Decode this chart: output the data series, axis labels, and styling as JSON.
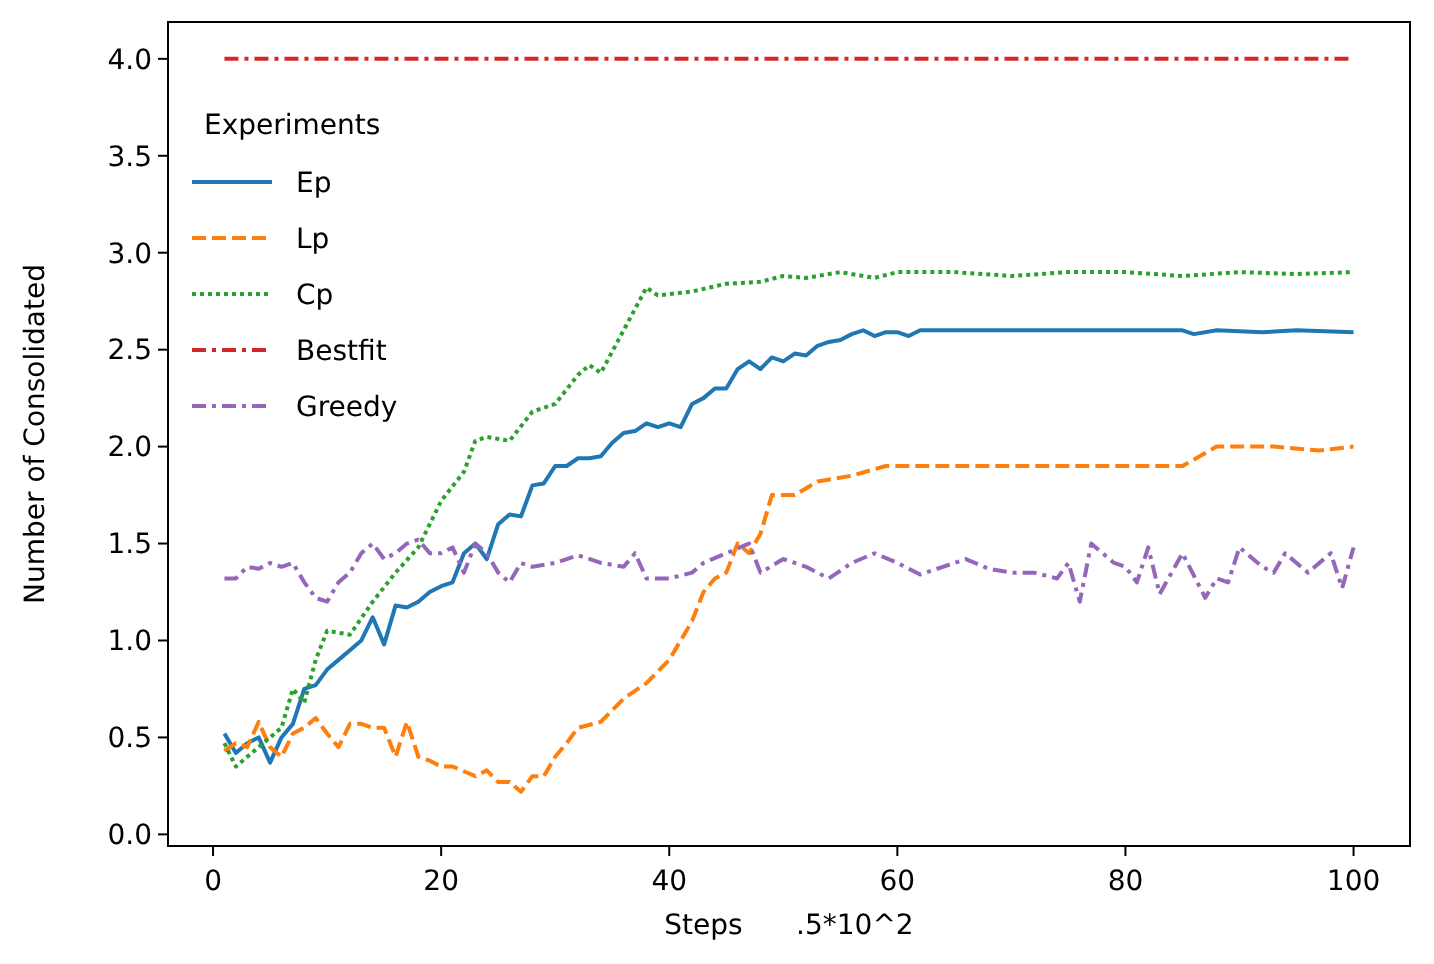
{
  "chart_data": {
    "type": "line",
    "xlabel": "Steps      .5*10^2",
    "ylabel": "Number of Consolidated",
    "legend_title": "Experiments",
    "legend": "top left",
    "grid": false,
    "xlim": [
      -3.95,
      104.95
    ],
    "ylim": [
      -0.06,
      4.19
    ],
    "xticks": [
      0,
      20,
      40,
      60,
      80,
      100
    ],
    "yticks": [
      {
        "value": 0,
        "label": "0.0"
      },
      {
        "value": 0.5,
        "label": "0.5"
      },
      {
        "value": 1,
        "label": "1.0"
      },
      {
        "value": 1.5,
        "label": "1.5"
      },
      {
        "value": 2,
        "label": "2.0"
      },
      {
        "value": 2.5,
        "label": "2.5"
      },
      {
        "value": 3,
        "label": "3.0"
      },
      {
        "value": 3.5,
        "label": "3.5"
      },
      {
        "value": 4,
        "label": "4.0"
      }
    ],
    "series": [
      {
        "name": "Ep",
        "color": "#1f77b4",
        "line_style": "solid",
        "x": [
          1,
          2,
          3,
          4,
          5,
          6,
          7,
          8,
          9,
          10,
          11,
          12,
          13,
          14,
          15,
          16,
          17,
          18,
          19,
          20,
          21,
          22,
          23,
          24,
          25,
          26,
          27,
          28,
          29,
          30,
          31,
          32,
          33,
          34,
          35,
          36,
          37,
          38,
          39,
          40,
          41,
          42,
          43,
          44,
          45,
          46,
          47,
          48,
          49,
          50,
          51,
          52,
          53,
          54,
          55,
          56,
          57,
          58,
          59,
          60,
          61,
          62,
          65,
          70,
          75,
          80,
          85,
          86,
          88,
          92,
          95,
          100
        ],
        "values": [
          0.52,
          0.42,
          0.47,
          0.5,
          0.37,
          0.5,
          0.57,
          0.75,
          0.77,
          0.85,
          0.9,
          0.95,
          1.0,
          1.12,
          0.98,
          1.18,
          1.17,
          1.2,
          1.25,
          1.28,
          1.3,
          1.45,
          1.5,
          1.42,
          1.6,
          1.65,
          1.64,
          1.8,
          1.81,
          1.9,
          1.9,
          1.94,
          1.94,
          1.95,
          2.02,
          2.07,
          2.08,
          2.12,
          2.1,
          2.12,
          2.1,
          2.22,
          2.25,
          2.3,
          2.3,
          2.4,
          2.44,
          2.4,
          2.46,
          2.44,
          2.48,
          2.47,
          2.52,
          2.54,
          2.55,
          2.58,
          2.6,
          2.57,
          2.59,
          2.59,
          2.57,
          2.6,
          2.6,
          2.6,
          2.6,
          2.6,
          2.6,
          2.58,
          2.6,
          2.59,
          2.6,
          2.59
        ]
      },
      {
        "name": "Lp",
        "color": "#ff7f0e",
        "line_style": "dashed",
        "x": [
          1,
          2,
          3,
          4,
          5,
          6,
          7,
          8,
          9,
          10,
          11,
          12,
          13,
          14,
          15,
          16,
          17,
          18,
          19,
          20,
          21,
          23,
          24,
          25,
          26,
          27,
          28,
          29,
          30,
          31,
          32,
          34,
          36,
          38,
          40,
          42,
          43,
          44,
          45,
          46,
          47,
          48,
          49,
          51,
          53,
          56,
          59,
          62,
          65,
          70,
          75,
          80,
          85,
          88,
          90,
          93,
          97,
          100
        ],
        "values": [
          0.43,
          0.47,
          0.45,
          0.58,
          0.45,
          0.4,
          0.52,
          0.55,
          0.6,
          0.52,
          0.45,
          0.57,
          0.57,
          0.55,
          0.55,
          0.4,
          0.58,
          0.4,
          0.38,
          0.35,
          0.35,
          0.3,
          0.33,
          0.27,
          0.27,
          0.22,
          0.3,
          0.3,
          0.4,
          0.47,
          0.55,
          0.58,
          0.7,
          0.78,
          0.9,
          1.1,
          1.25,
          1.32,
          1.35,
          1.5,
          1.45,
          1.55,
          1.75,
          1.75,
          1.82,
          1.85,
          1.9,
          1.9,
          1.9,
          1.9,
          1.9,
          1.9,
          1.9,
          2.0,
          2.0,
          2.0,
          1.98,
          2.0
        ]
      },
      {
        "name": "Cp",
        "color": "#2ca02c",
        "line_style": "dotted",
        "x": [
          1,
          2,
          4,
          6,
          7,
          8,
          9,
          10,
          12,
          14,
          16,
          18,
          20,
          22,
          23,
          24,
          26,
          28,
          30,
          32,
          33,
          34,
          36,
          38,
          39,
          42,
          45,
          48,
          50,
          52,
          55,
          58,
          60,
          65,
          70,
          75,
          80,
          85,
          90,
          95,
          100
        ],
        "values": [
          0.47,
          0.35,
          0.45,
          0.55,
          0.75,
          0.68,
          0.9,
          1.05,
          1.03,
          1.2,
          1.35,
          1.48,
          1.72,
          1.87,
          2.03,
          2.05,
          2.03,
          2.18,
          2.22,
          2.37,
          2.42,
          2.38,
          2.6,
          2.82,
          2.78,
          2.8,
          2.84,
          2.85,
          2.88,
          2.87,
          2.9,
          2.87,
          2.9,
          2.9,
          2.88,
          2.9,
          2.9,
          2.88,
          2.9,
          2.89,
          2.9
        ]
      },
      {
        "name": "Bestfit",
        "color": "#d62728",
        "line_style": "dashdot",
        "x": [
          1,
          100
        ],
        "values": [
          4.0,
          4.0
        ]
      },
      {
        "name": "Greedy",
        "color": "#9467bd",
        "line_style": "dashdot",
        "x": [
          1,
          2,
          3,
          4,
          5,
          6,
          7,
          8,
          9,
          10,
          11,
          12,
          13,
          14,
          15,
          16,
          17,
          18,
          19,
          20,
          21,
          22,
          23,
          24,
          25,
          26,
          27,
          28,
          30,
          32,
          34,
          36,
          37,
          38,
          40,
          42,
          43,
          45,
          47,
          48,
          50,
          52,
          54,
          56,
          58,
          60,
          62,
          64,
          66,
          68,
          70,
          72,
          74,
          75,
          76,
          77,
          79,
          80,
          81,
          82,
          83,
          85,
          87,
          88,
          89,
          90,
          92,
          93,
          94,
          96,
          98,
          99,
          100
        ],
        "values": [
          1.32,
          1.32,
          1.38,
          1.37,
          1.4,
          1.38,
          1.4,
          1.3,
          1.22,
          1.2,
          1.3,
          1.35,
          1.45,
          1.5,
          1.42,
          1.45,
          1.5,
          1.52,
          1.45,
          1.45,
          1.48,
          1.35,
          1.5,
          1.45,
          1.35,
          1.3,
          1.4,
          1.38,
          1.4,
          1.44,
          1.4,
          1.38,
          1.45,
          1.32,
          1.32,
          1.35,
          1.4,
          1.45,
          1.5,
          1.35,
          1.42,
          1.38,
          1.32,
          1.4,
          1.45,
          1.4,
          1.34,
          1.38,
          1.42,
          1.37,
          1.35,
          1.35,
          1.32,
          1.4,
          1.2,
          1.5,
          1.4,
          1.38,
          1.3,
          1.48,
          1.24,
          1.45,
          1.22,
          1.32,
          1.3,
          1.48,
          1.38,
          1.35,
          1.45,
          1.35,
          1.45,
          1.27,
          1.48
        ]
      }
    ]
  }
}
